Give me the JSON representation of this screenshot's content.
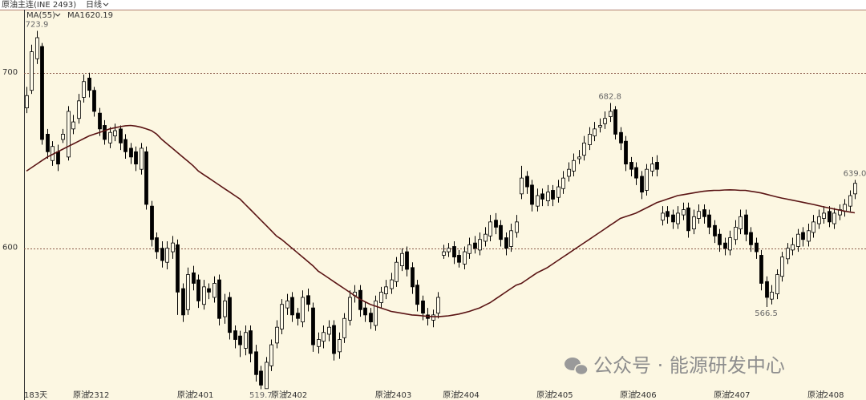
{
  "header": {
    "title": "原油主连(INE 2493)",
    "period": "日线"
  },
  "chart_data": {
    "type": "candlestick",
    "indicator": "MA(55)",
    "days_label": "183天",
    "categories": [
      null,
      null,
      null,
      null,
      null,
      null,
      null,
      null,
      null,
      null,
      null,
      null,
      "原油2312",
      null,
      null,
      null,
      null,
      null,
      null,
      null,
      null,
      null,
      null,
      null,
      null,
      null,
      null,
      null,
      null,
      null,
      null,
      null,
      "原油2401",
      null,
      null,
      null,
      null,
      null,
      null,
      null,
      null,
      null,
      null,
      null,
      null,
      null,
      null,
      null,
      null,
      null,
      "原油2402",
      null,
      null,
      null,
      null,
      null,
      null,
      null,
      null,
      null,
      null,
      null,
      null,
      null,
      null,
      null,
      null,
      null,
      null,
      null,
      "原油2403",
      null,
      null,
      null,
      null,
      null,
      null,
      null,
      null,
      null,
      null,
      null,
      null,
      "原油2404",
      null,
      null,
      null,
      null,
      null,
      null,
      null,
      null,
      null,
      null,
      null,
      null,
      null,
      null,
      null,
      null,
      null,
      "原油2405",
      null,
      null,
      null,
      null,
      null,
      null,
      null,
      null,
      null,
      null,
      null,
      null,
      null,
      null,
      null,
      "原油2406",
      null,
      null,
      null,
      null,
      null,
      null,
      null,
      null,
      null,
      null,
      null,
      null,
      null,
      null,
      null,
      null,
      null,
      "原油2407",
      null,
      null,
      null,
      null,
      null,
      null,
      null,
      null,
      null,
      null,
      null,
      null,
      null,
      null,
      null,
      null,
      null,
      "原油2408",
      null,
      null,
      null,
      null,
      null,
      null
    ],
    "open": [
      680,
      690,
      708,
      715,
      665,
      650,
      655,
      662,
      652,
      668,
      674,
      686,
      697,
      690,
      677,
      670,
      660,
      664,
      668,
      662,
      657,
      655,
      645,
      655,
      624,
      606,
      600,
      592,
      598,
      602,
      577,
      565,
      586,
      582,
      568,
      577,
      572,
      582,
      561,
      572,
      553,
      550,
      543,
      553,
      541,
      530,
      520,
      533,
      546,
      554,
      566,
      572,
      563,
      558,
      573,
      566,
      544,
      547,
      551,
      556,
      541,
      549,
      559,
      573,
      576,
      566,
      563,
      556,
      569,
      574,
      577,
      581,
      590,
      598,
      589,
      579,
      570,
      562,
      559,
      563,
      596,
      598,
      601,
      596,
      591,
      597,
      603,
      599,
      604,
      607,
      616,
      613,
      606,
      601,
      609,
      631,
      641,
      636,
      624,
      631,
      627,
      633,
      629,
      634,
      641,
      644,
      651,
      653,
      659,
      664,
      669,
      671,
      675,
      679,
      666,
      661,
      649,
      646,
      641,
      633,
      644,
      649,
      616,
      621,
      619,
      614,
      619,
      623,
      611,
      617,
      622,
      619,
      613,
      608,
      603,
      599,
      605,
      611,
      619,
      609,
      603,
      596,
      581,
      571,
      574,
      584,
      594,
      599,
      601,
      609,
      604,
      609,
      614,
      617,
      621,
      614,
      619,
      621,
      624,
      631
    ],
    "high": [
      692,
      716,
      723.9,
      717,
      668,
      661,
      659,
      668,
      681,
      676,
      688,
      699,
      700,
      692,
      680,
      673,
      669,
      671,
      670,
      665,
      660,
      658,
      660,
      658,
      627,
      609,
      604,
      604,
      607,
      605,
      580,
      589,
      590,
      585,
      582,
      580,
      584,
      585,
      574,
      575,
      556,
      553,
      556,
      556,
      545,
      533,
      538,
      548,
      559,
      571,
      574,
      575,
      566,
      576,
      577,
      569,
      552,
      556,
      559,
      559,
      552,
      563,
      576,
      579,
      579,
      569,
      566,
      573,
      578,
      582,
      586,
      595,
      600,
      601,
      592,
      582,
      573,
      566,
      565,
      575,
      602,
      603,
      604,
      599,
      601,
      606,
      607,
      609,
      612,
      619,
      620,
      616,
      609,
      614,
      619,
      647,
      644,
      639,
      634,
      634,
      636,
      636,
      639,
      644,
      649,
      654,
      656,
      664,
      669,
      672,
      674,
      678,
      682.8,
      681,
      669,
      664,
      652,
      649,
      644,
      648,
      652,
      653,
      624,
      624,
      622,
      624,
      626,
      626,
      622,
      625,
      625,
      622,
      616,
      611,
      606,
      610,
      616,
      622,
      622,
      612,
      606,
      599,
      584,
      579,
      588,
      598,
      603,
      606,
      611,
      612,
      614,
      619,
      622,
      624,
      624,
      623,
      625,
      628,
      633,
      639
    ],
    "low": [
      677,
      688,
      705,
      659,
      651,
      647,
      644,
      660,
      650,
      665,
      671,
      683,
      686,
      675,
      664,
      659,
      657,
      661,
      656,
      651,
      648,
      644,
      642,
      622,
      601,
      594,
      589,
      588,
      594,
      562,
      558,
      562,
      576,
      566,
      565,
      571,
      569,
      556,
      557,
      548,
      543,
      538,
      539,
      535,
      524,
      519.7,
      521,
      530,
      543,
      551,
      562,
      558,
      556,
      555,
      564,
      541,
      540,
      543,
      547,
      536,
      537,
      546,
      556,
      569,
      561,
      558,
      554,
      553,
      566,
      571,
      574,
      578,
      587,
      584,
      574,
      564,
      559,
      556,
      555,
      560,
      594,
      595,
      591,
      589,
      588,
      594,
      597,
      596,
      601,
      604,
      608,
      601,
      596,
      598,
      606,
      628,
      631,
      621,
      621,
      624,
      624,
      624,
      626,
      631,
      638,
      641,
      648,
      650,
      656,
      661,
      666,
      668,
      672,
      662,
      656,
      644,
      641,
      636,
      628,
      630,
      641,
      641,
      613,
      614,
      611,
      611,
      616,
      606,
      608,
      614,
      614,
      608,
      603,
      598,
      596,
      596,
      602,
      608,
      604,
      598,
      594,
      576,
      566.5,
      568,
      571,
      581,
      591,
      596,
      598,
      601,
      601,
      606,
      611,
      614,
      612,
      611,
      616,
      618,
      621,
      628
    ],
    "close": [
      687,
      712,
      720,
      662,
      655,
      658,
      648,
      665,
      678,
      672,
      684,
      695,
      690,
      678,
      668,
      662,
      666,
      667,
      660,
      655,
      652,
      648,
      657,
      625,
      605,
      598,
      593,
      600,
      603,
      575,
      562,
      585,
      580,
      570,
      578,
      575,
      580,
      560,
      570,
      552,
      548,
      545,
      552,
      540,
      528,
      522,
      535,
      545,
      555,
      568,
      570,
      562,
      560,
      572,
      568,
      545,
      548,
      552,
      555,
      540,
      548,
      560,
      572,
      575,
      565,
      562,
      558,
      570,
      575,
      578,
      582,
      592,
      597,
      588,
      578,
      568,
      563,
      560,
      562,
      572,
      598,
      600,
      595,
      592,
      598,
      602,
      600,
      605,
      608,
      615,
      612,
      605,
      600,
      610,
      615,
      640,
      635,
      625,
      630,
      628,
      632,
      628,
      635,
      640,
      645,
      650,
      652,
      660,
      665,
      668,
      670,
      674,
      678,
      665,
      660,
      648,
      645,
      640,
      632,
      645,
      648,
      645,
      620,
      618,
      615,
      620,
      622,
      610,
      618,
      621,
      618,
      612,
      607,
      602,
      600,
      606,
      612,
      618,
      608,
      602,
      598,
      580,
      572,
      575,
      585,
      595,
      600,
      602,
      608,
      605,
      610,
      615,
      618,
      620,
      615,
      620,
      622,
      625,
      630,
      637
    ],
    "up_color": "#fffbea",
    "down_color": "#000000",
    "ma": {
      "name": "MA1",
      "color": "#5a1414",
      "values": [
        644,
        646,
        648,
        650,
        652,
        653.5,
        655,
        656.5,
        658,
        659.5,
        661,
        662.5,
        664,
        665,
        666,
        667,
        668,
        668.7,
        669.3,
        669.8,
        670,
        669.6,
        669,
        668,
        667,
        665,
        662,
        659.5,
        657,
        654.5,
        652,
        649.5,
        647,
        644,
        642,
        640,
        638,
        636,
        634,
        632,
        630,
        628,
        625,
        622,
        619,
        616,
        613,
        610,
        607,
        605,
        602.5,
        600,
        597.5,
        595,
        592.5,
        590,
        587,
        585,
        583,
        581,
        579,
        577,
        575,
        573,
        571,
        569.5,
        568,
        567,
        566,
        565,
        564,
        563.5,
        563,
        562.5,
        562,
        561.8,
        561.5,
        561.2,
        561,
        561,
        561.2,
        561.5,
        562,
        562.5,
        563.2,
        564,
        565,
        566,
        567.5,
        569,
        571,
        573,
        575,
        577,
        579,
        580,
        582,
        584,
        586,
        587.5,
        589,
        591,
        593,
        595,
        597,
        599,
        601,
        603,
        605,
        607,
        609,
        611,
        613,
        615,
        617,
        618,
        619,
        620,
        621.5,
        623,
        624.5,
        626,
        627,
        628,
        629,
        630,
        630.5,
        631,
        631.5,
        632,
        632.5,
        632.8,
        633,
        633,
        633.2,
        633.3,
        633.2,
        633,
        633,
        632.5,
        632,
        631.5,
        630.8,
        630,
        629.3,
        628.6,
        628,
        627.4,
        626.8,
        626.2,
        625.6,
        625,
        624.3,
        623.6,
        623,
        622.4,
        621.8,
        621.2,
        620.7,
        620.19
      ]
    },
    "ylim": [
      519,
      736
    ],
    "yticks": [
      600,
      700
    ],
    "grid": true,
    "annotations": [
      723.9,
      682.8,
      519.7,
      566.5,
      {
        "value": 639,
        "label": "639.0"
      }
    ]
  },
  "watermark": "公众号 · 能源研发中心"
}
